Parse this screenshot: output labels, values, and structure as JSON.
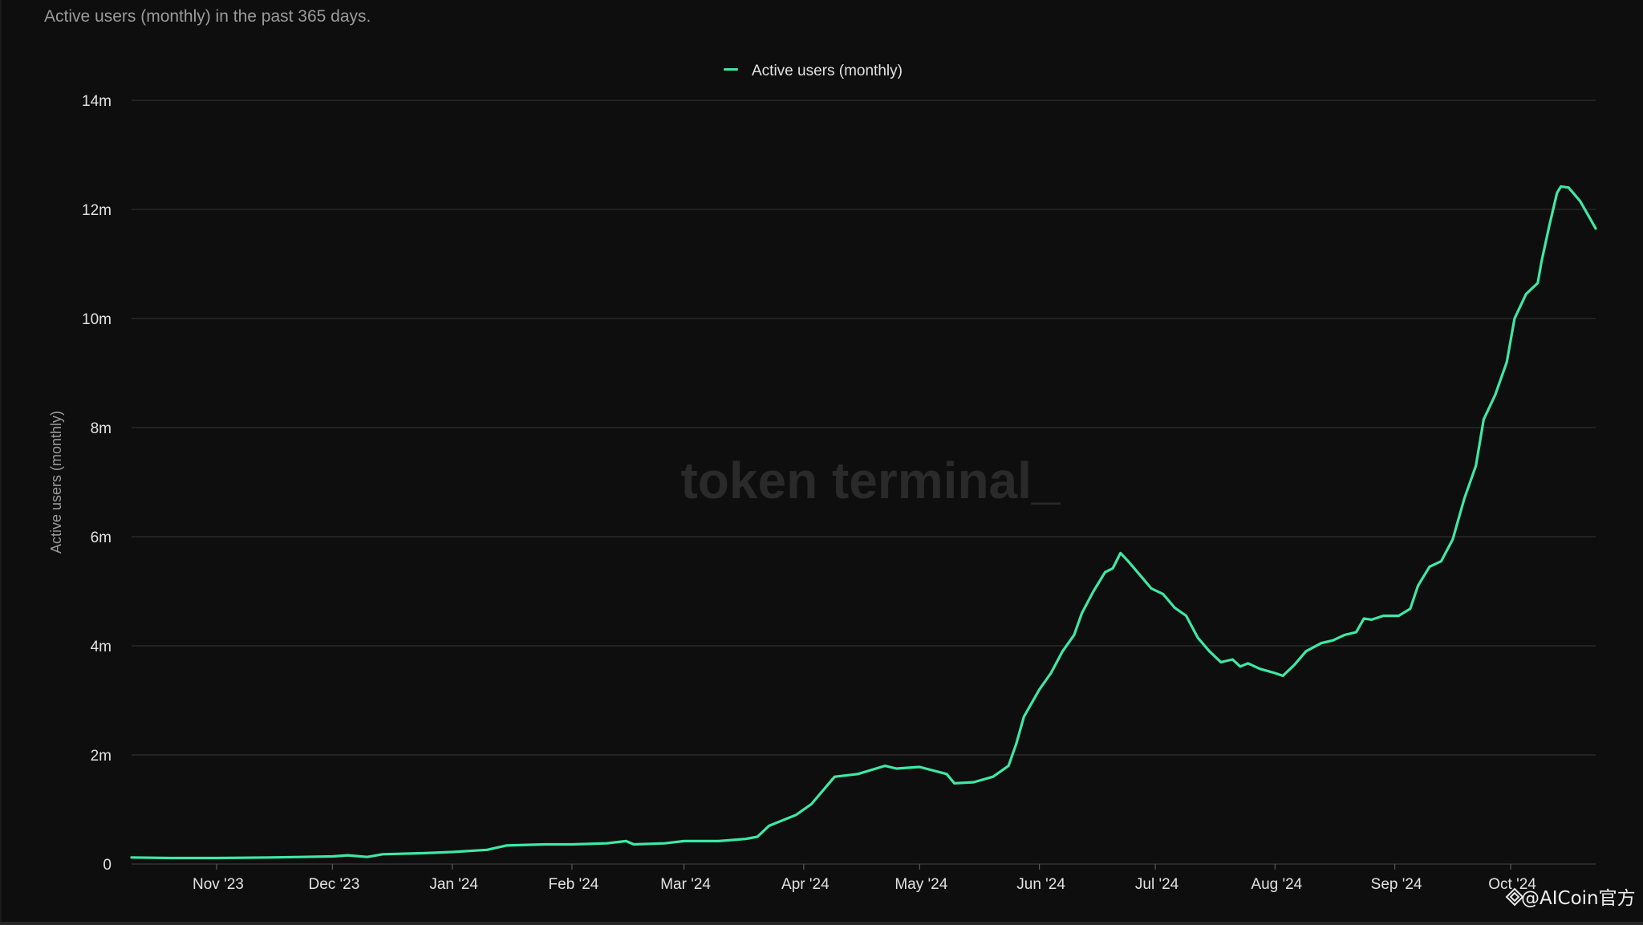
{
  "subtitle": "Active users (monthly) in the past 365 days.",
  "watermark": "token terminal_",
  "credit": "@AICoin官方",
  "colors": {
    "background": "#0e0e0e",
    "line": "#3ee8a6",
    "grid": "#2e2e2e",
    "text": "#e2e2e2",
    "muted": "#9a9a9a",
    "watermark": "#2a2a2a"
  },
  "chart_data": {
    "type": "line",
    "title": "",
    "subtitle": "Active users (monthly) in the past 365 days.",
    "xlabel": "",
    "ylabel": "Active users (monthly)",
    "x_range": [
      "2023-10-10",
      "2024-10-09"
    ],
    "ylim": [
      0,
      14000000
    ],
    "yticks": [
      0,
      2000000,
      4000000,
      6000000,
      8000000,
      10000000,
      12000000,
      14000000
    ],
    "ytick_labels": [
      "0",
      "2m",
      "4m",
      "6m",
      "8m",
      "10m",
      "12m",
      "14m"
    ],
    "xticks": [
      "2023-11-01",
      "2023-12-01",
      "2024-01-01",
      "2024-02-01",
      "2024-03-01",
      "2024-04-01",
      "2024-05-01",
      "2024-06-01",
      "2024-07-01",
      "2024-08-01",
      "2024-09-01",
      "2024-10-01"
    ],
    "xtick_labels": [
      "Nov '23",
      "Dec '23",
      "Jan '24",
      "Feb '24",
      "Mar '24",
      "Apr '24",
      "May '24",
      "Jun '24",
      "Jul '24",
      "Aug '24",
      "Sep '24",
      "Oct '24"
    ],
    "grid": true,
    "legend_position": "top-center",
    "series": [
      {
        "name": "Active users (monthly)",
        "color": "#3ee8a6",
        "points": [
          [
            "2023-10-10",
            120000
          ],
          [
            "2023-10-20",
            110000
          ],
          [
            "2023-11-01",
            110000
          ],
          [
            "2023-11-15",
            120000
          ],
          [
            "2023-12-01",
            140000
          ],
          [
            "2023-12-05",
            160000
          ],
          [
            "2023-12-10",
            130000
          ],
          [
            "2023-12-14",
            180000
          ],
          [
            "2023-12-25",
            200000
          ],
          [
            "2024-01-01",
            220000
          ],
          [
            "2024-01-10",
            260000
          ],
          [
            "2024-01-15",
            340000
          ],
          [
            "2024-01-25",
            360000
          ],
          [
            "2024-02-01",
            360000
          ],
          [
            "2024-02-10",
            380000
          ],
          [
            "2024-02-15",
            420000
          ],
          [
            "2024-02-17",
            360000
          ],
          [
            "2024-02-25",
            380000
          ],
          [
            "2024-03-01",
            420000
          ],
          [
            "2024-03-10",
            420000
          ],
          [
            "2024-03-17",
            460000
          ],
          [
            "2024-03-20",
            500000
          ],
          [
            "2024-03-23",
            700000
          ],
          [
            "2024-03-30",
            900000
          ],
          [
            "2024-04-03",
            1100000
          ],
          [
            "2024-04-06",
            1350000
          ],
          [
            "2024-04-09",
            1600000
          ],
          [
            "2024-04-15",
            1650000
          ],
          [
            "2024-04-22",
            1800000
          ],
          [
            "2024-04-25",
            1750000
          ],
          [
            "2024-05-01",
            1780000
          ],
          [
            "2024-05-08",
            1650000
          ],
          [
            "2024-05-10",
            1480000
          ],
          [
            "2024-05-15",
            1500000
          ],
          [
            "2024-05-20",
            1600000
          ],
          [
            "2024-05-24",
            1800000
          ],
          [
            "2024-05-26",
            2200000
          ],
          [
            "2024-05-28",
            2700000
          ],
          [
            "2024-06-01",
            3200000
          ],
          [
            "2024-06-04",
            3500000
          ],
          [
            "2024-06-07",
            3900000
          ],
          [
            "2024-06-10",
            4200000
          ],
          [
            "2024-06-12",
            4600000
          ],
          [
            "2024-06-15",
            5000000
          ],
          [
            "2024-06-18",
            5350000
          ],
          [
            "2024-06-20",
            5420000
          ],
          [
            "2024-06-22",
            5700000
          ],
          [
            "2024-06-24",
            5550000
          ],
          [
            "2024-06-27",
            5300000
          ],
          [
            "2024-06-30",
            5050000
          ],
          [
            "2024-07-03",
            4950000
          ],
          [
            "2024-07-06",
            4700000
          ],
          [
            "2024-07-09",
            4550000
          ],
          [
            "2024-07-12",
            4150000
          ],
          [
            "2024-07-15",
            3900000
          ],
          [
            "2024-07-18",
            3700000
          ],
          [
            "2024-07-21",
            3750000
          ],
          [
            "2024-07-23",
            3620000
          ],
          [
            "2024-07-25",
            3680000
          ],
          [
            "2024-07-28",
            3580000
          ],
          [
            "2024-08-01",
            3500000
          ],
          [
            "2024-08-03",
            3450000
          ],
          [
            "2024-08-06",
            3650000
          ],
          [
            "2024-08-09",
            3900000
          ],
          [
            "2024-08-13",
            4050000
          ],
          [
            "2024-08-16",
            4100000
          ],
          [
            "2024-08-19",
            4200000
          ],
          [
            "2024-08-22",
            4250000
          ],
          [
            "2024-08-24",
            4500000
          ],
          [
            "2024-08-26",
            4480000
          ],
          [
            "2024-08-29",
            4550000
          ],
          [
            "2024-09-02",
            4550000
          ],
          [
            "2024-09-05",
            4680000
          ],
          [
            "2024-09-07",
            5100000
          ],
          [
            "2024-09-10",
            5450000
          ],
          [
            "2024-09-13",
            5550000
          ],
          [
            "2024-09-16",
            5950000
          ],
          [
            "2024-09-19",
            6700000
          ],
          [
            "2024-09-22",
            7300000
          ],
          [
            "2024-09-24",
            8150000
          ],
          [
            "2024-09-27",
            8600000
          ],
          [
            "2024-09-30",
            9200000
          ],
          [
            "2024-10-02",
            10000000
          ],
          [
            "2024-10-05",
            10450000
          ],
          [
            "2024-10-08",
            10650000
          ],
          [
            "2024-10-09",
            11050000
          ],
          [
            "2024-10-11",
            11700000
          ],
          [
            "2024-10-13",
            12300000
          ],
          [
            "2024-10-14",
            12420000
          ],
          [
            "2024-10-16",
            12400000
          ],
          [
            "2024-10-19",
            12150000
          ],
          [
            "2024-10-21",
            11900000
          ],
          [
            "2024-10-23",
            11650000
          ]
        ]
      }
    ]
  }
}
